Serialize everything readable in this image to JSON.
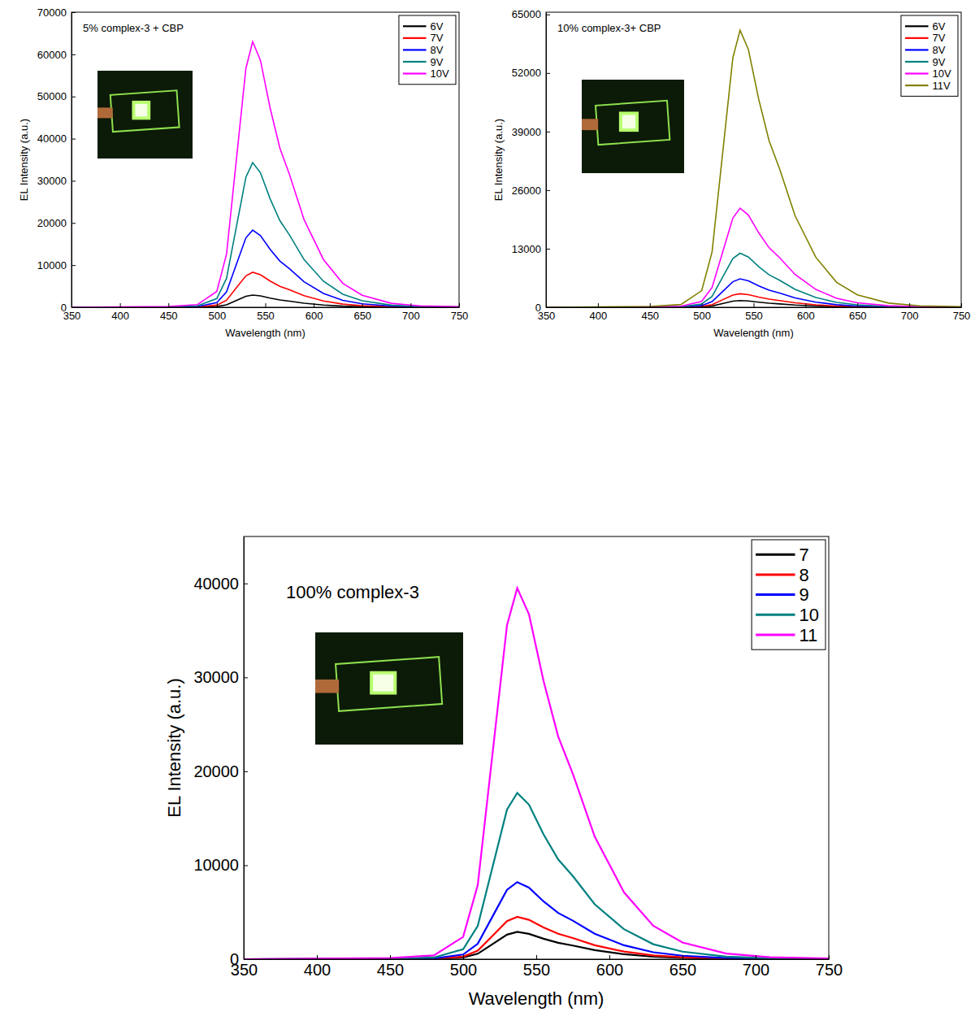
{
  "chart_data": [
    {
      "type": "line",
      "annotation": "5% complex-3 + CBP",
      "x_label": "Wavelength (nm)",
      "y_label": "EL Intensity (a.u.)",
      "x": [
        350,
        450,
        480,
        500,
        510,
        520,
        530,
        537,
        545,
        555,
        565,
        575,
        590,
        610,
        630,
        650,
        680,
        710,
        750
      ],
      "xlim": [
        350,
        750
      ],
      "xticks": [
        350,
        400,
        450,
        500,
        550,
        600,
        650,
        700,
        750
      ],
      "ylim": [
        0,
        70000
      ],
      "yticks": [
        0,
        10000,
        20000,
        30000,
        40000,
        50000,
        60000,
        70000
      ],
      "legend": "upper right",
      "series": [
        {
          "name": "6V",
          "color": "#000000",
          "values": [
            0,
            9,
            29,
            174,
            580,
            1595,
            2610,
            2900,
            2697,
            2175,
            1740,
            1450,
            957,
            522,
            261,
            131,
            44,
            15,
            6
          ]
        },
        {
          "name": "7V",
          "color": "#ff0000",
          "values": [
            0,
            25,
            83,
            498,
            1660,
            4565,
            7470,
            8300,
            7719,
            6225,
            4980,
            4150,
            2739,
            1494,
            747,
            374,
            125,
            42,
            17
          ]
        },
        {
          "name": "8V",
          "color": "#0000ff",
          "values": [
            0,
            55,
            183,
            1098,
            3660,
            10065,
            16470,
            18300,
            17019,
            13725,
            10980,
            9150,
            6039,
            3294,
            1647,
            824,
            275,
            92,
            37
          ]
        },
        {
          "name": "9V",
          "color": "#008080",
          "values": [
            0,
            103,
            343,
            2058,
            6860,
            18865,
            30870,
            34300,
            31899,
            25725,
            20580,
            17150,
            11319,
            6174,
            3087,
            1544,
            515,
            172,
            69
          ]
        },
        {
          "name": "10V",
          "color": "#ff00ff",
          "values": [
            0,
            189,
            630,
            3780,
            12600,
            34650,
            56700,
            63000,
            58590,
            47250,
            37800,
            31500,
            20790,
            11340,
            5670,
            2835,
            945,
            315,
            126
          ]
        }
      ]
    },
    {
      "type": "line",
      "annotation": "10% complex-3+ CBP",
      "x_label": "Wavelength (nm)",
      "y_label": "EL Intensity (a.u.)",
      "x": [
        350,
        450,
        480,
        500,
        510,
        520,
        530,
        537,
        545,
        555,
        565,
        575,
        590,
        610,
        630,
        650,
        680,
        710,
        750
      ],
      "xlim": [
        350,
        750
      ],
      "xticks": [
        350,
        400,
        450,
        500,
        550,
        600,
        650,
        700,
        750
      ],
      "ylim": [
        0,
        65500
      ],
      "yticks": [
        0,
        13000,
        26000,
        39000,
        52000,
        65000
      ],
      "legend": "upper right",
      "series": [
        {
          "name": "6V",
          "color": "#000000",
          "values": [
            0,
            5,
            15,
            90,
            300,
            825,
            1350,
            1500,
            1395,
            1125,
            900,
            750,
            495,
            270,
            135,
            68,
            23,
            8,
            3
          ]
        },
        {
          "name": "7V",
          "color": "#ff0000",
          "values": [
            0,
            9,
            30,
            180,
            600,
            1650,
            2700,
            3000,
            2790,
            2250,
            1800,
            1500,
            990,
            540,
            270,
            135,
            45,
            15,
            6
          ]
        },
        {
          "name": "8V",
          "color": "#0000ff",
          "values": [
            0,
            19,
            63,
            378,
            1260,
            3465,
            5670,
            6300,
            5859,
            4725,
            3780,
            3150,
            2079,
            1134,
            567,
            284,
            95,
            32,
            13
          ]
        },
        {
          "name": "9V",
          "color": "#008080",
          "values": [
            0,
            36,
            120,
            720,
            2400,
            6600,
            10800,
            12000,
            11160,
            9000,
            7200,
            6000,
            3960,
            2160,
            1080,
            540,
            180,
            60,
            24
          ]
        },
        {
          "name": "10V",
          "color": "#ff00ff",
          "values": [
            0,
            66,
            220,
            1320,
            4400,
            12100,
            19800,
            22000,
            20460,
            16500,
            13200,
            11000,
            7260,
            3960,
            1980,
            990,
            330,
            110,
            44
          ]
        },
        {
          "name": "11V",
          "color": "#808000",
          "values": [
            0,
            185,
            615,
            3690,
            12300,
            33825,
            55350,
            61500,
            57195,
            46125,
            36900,
            30750,
            20295,
            11070,
            5535,
            2768,
            923,
            308,
            123
          ]
        }
      ]
    },
    {
      "type": "line",
      "annotation": "100% complex-3",
      "x_label": "Wavelength (nm)",
      "y_label": "EL Intensity (a.u.)",
      "x": [
        350,
        450,
        480,
        500,
        510,
        520,
        530,
        537,
        545,
        555,
        565,
        575,
        590,
        610,
        630,
        650,
        680,
        710,
        750
      ],
      "xlim": [
        350,
        750
      ],
      "xticks": [
        350,
        400,
        450,
        500,
        550,
        600,
        650,
        700,
        750
      ],
      "ylim": [
        0,
        45000
      ],
      "yticks": [
        0,
        10000,
        20000,
        30000,
        40000
      ],
      "legend": "upper right",
      "series": [
        {
          "name": "7",
          "color": "#000000",
          "values": [
            0,
            9,
            29,
            174,
            580,
            1595,
            2610,
            2900,
            2697,
            2175,
            1740,
            1450,
            957,
            522,
            261,
            131,
            44,
            15,
            6
          ]
        },
        {
          "name": "8",
          "color": "#ff0000",
          "values": [
            0,
            14,
            45,
            270,
            900,
            2475,
            4050,
            4500,
            4185,
            3375,
            2700,
            2250,
            1485,
            810,
            405,
            203,
            68,
            23,
            9
          ]
        },
        {
          "name": "9",
          "color": "#0000ff",
          "values": [
            0,
            25,
            82,
            492,
            1640,
            4510,
            7380,
            8200,
            7626,
            6150,
            4920,
            4100,
            2706,
            1476,
            738,
            369,
            123,
            41,
            16
          ]
        },
        {
          "name": "10",
          "color": "#008080",
          "values": [
            0,
            53,
            177,
            1062,
            3540,
            9735,
            15930,
            17700,
            16461,
            13275,
            10620,
            8850,
            5841,
            3186,
            1593,
            797,
            266,
            89,
            35
          ]
        },
        {
          "name": "11",
          "color": "#ff00ff",
          "values": [
            0,
            119,
            395,
            2370,
            7900,
            21725,
            35550,
            39500,
            36735,
            29625,
            23700,
            19750,
            13035,
            7110,
            3555,
            1778,
            593,
            198,
            79
          ]
        }
      ]
    }
  ]
}
